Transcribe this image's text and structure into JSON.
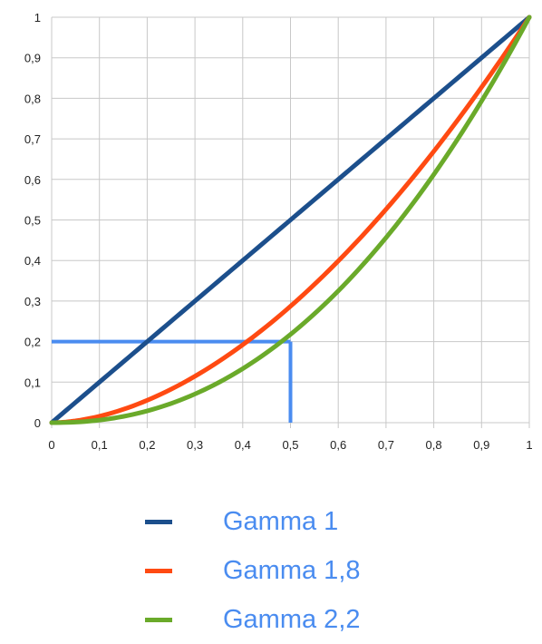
{
  "chart_data": {
    "type": "line",
    "title": "",
    "xlabel": "",
    "ylabel": "",
    "xlim": [
      0,
      1
    ],
    "ylim": [
      0,
      1
    ],
    "grid": true,
    "legend_position": "bottom",
    "x_ticks": [
      "0",
      "0,1",
      "0,2",
      "0,3",
      "0,4",
      "0,5",
      "0,6",
      "0,7",
      "0,8",
      "0,9",
      "1"
    ],
    "y_ticks": [
      "0",
      "0,1",
      "0,2",
      "0,3",
      "0,4",
      "0,5",
      "0,6",
      "0,7",
      "0,8",
      "0,9",
      "1"
    ],
    "series": [
      {
        "name": "Gamma 1",
        "gamma": 1,
        "color": "#1c4f8c"
      },
      {
        "name": "Gamma 1,8",
        "gamma": 1.8,
        "color": "#ff4a12"
      },
      {
        "name": "Gamma 2,2",
        "gamma": 2.2,
        "color": "#6aaa2a"
      }
    ],
    "annotation": {
      "type": "reference-lines",
      "color": "#4a8cf0",
      "x": 0.5,
      "y": 0.2
    }
  }
}
